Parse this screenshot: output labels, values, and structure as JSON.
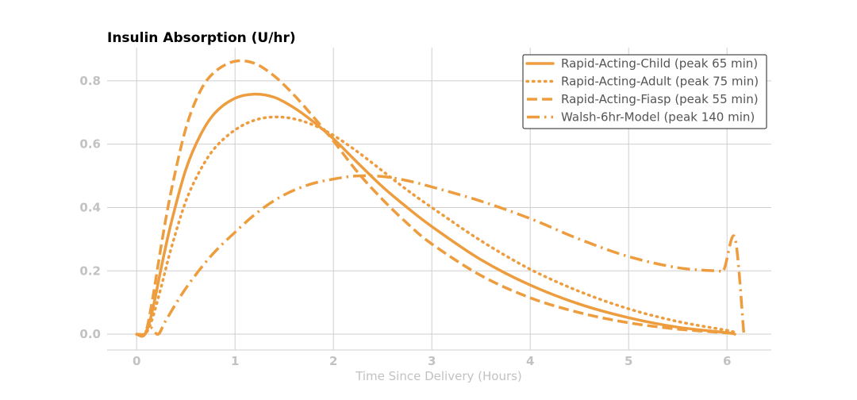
{
  "chart_data": {
    "type": "line",
    "title": "Insulin Absorption (U/hr)",
    "xlabel": "Time Since Delivery (Hours)",
    "ylabel": "",
    "xlim": [
      -0.3,
      6.45
    ],
    "ylim": [
      -0.05,
      0.905
    ],
    "xticks": [
      0,
      1,
      2,
      3,
      4,
      5,
      6
    ],
    "xtick_labels": [
      "0",
      "1",
      "2",
      "3",
      "4",
      "5",
      "6"
    ],
    "yticks": [
      0.0,
      0.2,
      0.4,
      0.6,
      0.8
    ],
    "ytick_labels": [
      "0.0",
      "0.2",
      "0.4",
      "0.6",
      "0.8"
    ],
    "grid": true,
    "legend_position": "top-right",
    "line_color": "#ed9c3e",
    "series": [
      {
        "name": "Rapid-Acting-Child (peak 65 min)",
        "style": "solid",
        "x": [
          0,
          0.083,
          0.15,
          0.25,
          0.35,
          0.5,
          0.65,
          0.8,
          1.0,
          1.2,
          1.4,
          1.6,
          1.8,
          2.0,
          2.25,
          2.5,
          2.75,
          3.0,
          3.5,
          4.0,
          4.5,
          5.0,
          5.5,
          6.0,
          6.08
        ],
        "y": [
          0,
          0,
          0.06,
          0.21,
          0.35,
          0.52,
          0.63,
          0.7,
          0.745,
          0.758,
          0.748,
          0.715,
          0.67,
          0.617,
          0.54,
          0.465,
          0.4,
          0.34,
          0.235,
          0.155,
          0.095,
          0.052,
          0.022,
          0.005,
          0.0
        ]
      },
      {
        "name": "Rapid-Acting-Adult (peak 75 min)",
        "style": "dotted",
        "x": [
          0,
          0.083,
          0.15,
          0.25,
          0.35,
          0.5,
          0.65,
          0.8,
          1.0,
          1.2,
          1.4,
          1.6,
          1.8,
          2.0,
          2.25,
          2.5,
          2.75,
          3.0,
          3.5,
          4.0,
          4.5,
          5.0,
          5.5,
          6.0,
          6.08
        ],
        "y": [
          0,
          0,
          0.04,
          0.15,
          0.27,
          0.42,
          0.52,
          0.59,
          0.645,
          0.676,
          0.686,
          0.68,
          0.66,
          0.628,
          0.575,
          0.515,
          0.455,
          0.4,
          0.295,
          0.205,
          0.135,
          0.08,
          0.04,
          0.012,
          0.005
        ]
      },
      {
        "name": "Rapid-Acting-Fiasp (peak 55 min)",
        "style": "dashed",
        "x": [
          0,
          0.083,
          0.15,
          0.25,
          0.35,
          0.5,
          0.65,
          0.8,
          1.0,
          1.2,
          1.4,
          1.6,
          1.8,
          2.0,
          2.25,
          2.5,
          2.75,
          3.0,
          3.5,
          4.0,
          4.5,
          5.0,
          5.5,
          6.0,
          6.08
        ],
        "y": [
          0,
          0,
          0.09,
          0.28,
          0.45,
          0.65,
          0.77,
          0.83,
          0.862,
          0.855,
          0.815,
          0.755,
          0.685,
          0.61,
          0.51,
          0.425,
          0.35,
          0.285,
          0.185,
          0.115,
          0.068,
          0.036,
          0.016,
          0.004,
          0.0
        ]
      },
      {
        "name": "Walsh-6hr-Model (peak 140 min)",
        "style": "dashdot",
        "x": [
          0,
          0.083,
          0.1,
          0.15,
          0.22,
          0.3,
          0.5,
          0.75,
          1.0,
          1.25,
          1.5,
          1.75,
          2.0,
          2.25,
          2.5,
          2.75,
          3.0,
          3.5,
          4.0,
          4.5,
          5.0,
          5.5,
          5.9,
          5.97,
          6.08,
          6.17
        ],
        "y": [
          0,
          0,
          0.012,
          0.02,
          0.0,
          0.045,
          0.145,
          0.245,
          0.322,
          0.39,
          0.44,
          0.472,
          0.49,
          0.5,
          0.498,
          0.485,
          0.465,
          0.42,
          0.365,
          0.3,
          0.245,
          0.21,
          0.2,
          0.205,
          0.305,
          0.005
        ]
      }
    ]
  }
}
